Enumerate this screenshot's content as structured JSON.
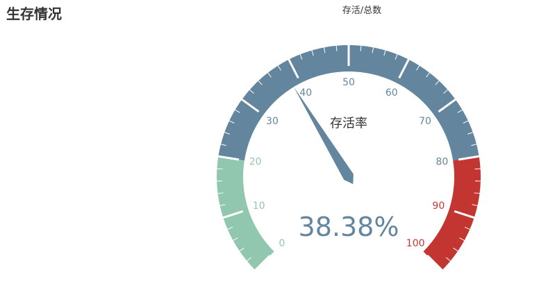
{
  "header": {
    "title": "生存情况"
  },
  "legend": {
    "label": "存活/总数"
  },
  "chart_data": {
    "type": "gauge",
    "name": "存活率",
    "value": 38.38,
    "value_display": "38.38%",
    "min": 0,
    "max": 100,
    "tick_labels": [
      "0",
      "10",
      "20",
      "30",
      "40",
      "50",
      "60",
      "70",
      "80",
      "90",
      "100"
    ],
    "bands": [
      {
        "from": 0,
        "to": 20,
        "color": "#91c7ae"
      },
      {
        "from": 20,
        "to": 80,
        "color": "#63869e"
      },
      {
        "from": 80,
        "to": 100,
        "color": "#c23531"
      }
    ],
    "pointer_color": "#63869e"
  }
}
